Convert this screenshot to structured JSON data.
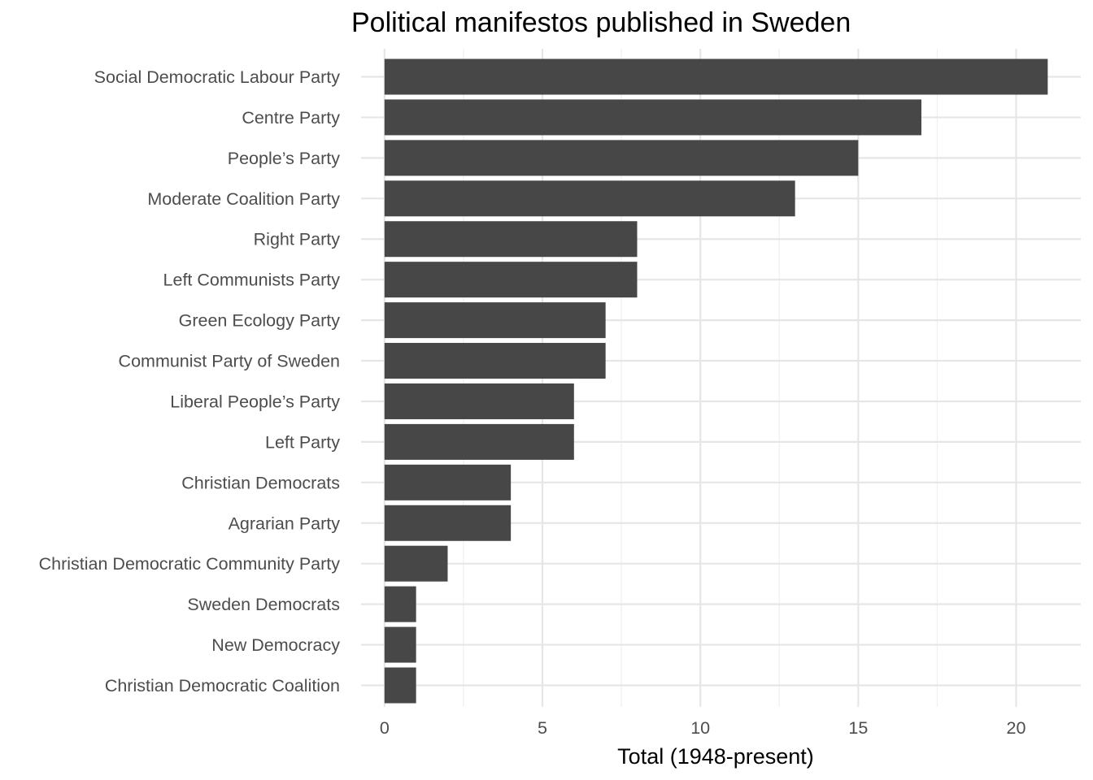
{
  "chart_data": {
    "type": "bar",
    "orientation": "horizontal",
    "title": "Political manifestos published in Sweden",
    "xlabel": "Total (1948-present)",
    "ylabel": "",
    "xlim": [
      0,
      22
    ],
    "x_ticks": [
      0,
      5,
      10,
      15,
      20
    ],
    "x_tick_labels": [
      "0",
      "5",
      "10",
      "15",
      "20"
    ],
    "grid": true,
    "categories": [
      "Social Democratic Labour Party",
      "Centre Party",
      "People’s Party",
      "Moderate Coalition Party",
      "Right Party",
      "Left Communists Party",
      "Green Ecology Party",
      "Communist Party of Sweden",
      "Liberal People’s Party",
      "Left Party",
      "Christian Democrats",
      "Agrarian Party",
      "Christian Democratic Community Party",
      "Sweden Democrats",
      "New Democracy",
      "Christian Democratic Coalition"
    ],
    "values": [
      21,
      17,
      15,
      13,
      8,
      8,
      7,
      7,
      6,
      6,
      4,
      4,
      2,
      1,
      1,
      1
    ],
    "colors": {
      "bar": "#474747",
      "grid_major": "#e6e6e6",
      "grid_minor": "#f0f0f0",
      "label_text": "#4d4d4d",
      "title_text": "#000000"
    }
  }
}
